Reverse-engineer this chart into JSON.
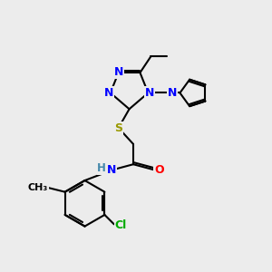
{
  "bg_color": "#ececec",
  "atom_colors": {
    "N": "#0000ff",
    "O": "#ff0000",
    "S": "#999900",
    "Cl": "#00aa00",
    "C": "#000000",
    "H": "#4488aa"
  },
  "bond_color": "#000000",
  "bond_width": 1.5
}
